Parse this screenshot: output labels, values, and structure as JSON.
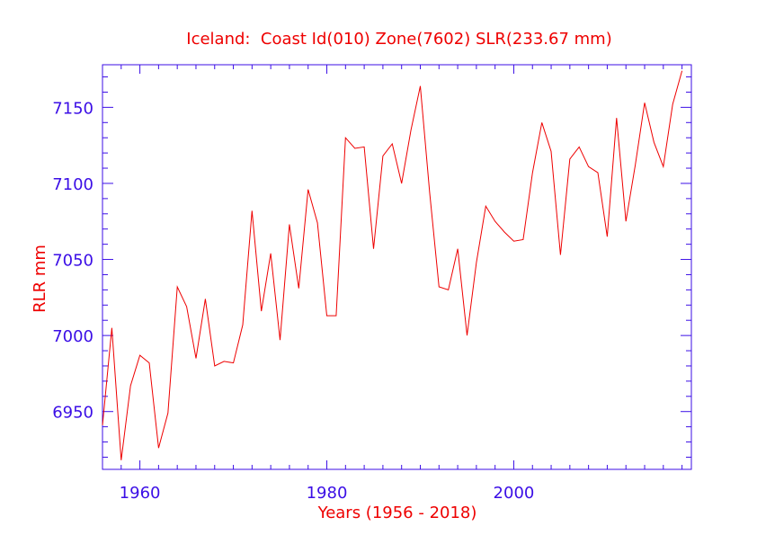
{
  "colors": {
    "axis": "#3b0ee6",
    "text": "#ee0000",
    "line": "#ee0000",
    "background": "#ffffff"
  },
  "chart_data": {
    "type": "line",
    "title": "Iceland:  Coast Id(010) Zone(7602) SLR(233.67 mm)",
    "xlabel": "Years (1956 - 2018)",
    "ylabel": "RLR mm",
    "xlim": [
      1956,
      2019
    ],
    "ylim": [
      6912,
      7178
    ],
    "xticks": [
      1960,
      1980,
      2000
    ],
    "xtick_labels": [
      "1960",
      "1980",
      "2000"
    ],
    "yticks": [
      6950,
      7000,
      7050,
      7100,
      7150
    ],
    "ytick_labels": [
      "6950",
      "7000",
      "7050",
      "7100",
      "7150"
    ],
    "grid": false,
    "series": [
      {
        "x": [
          1956,
          1957,
          1958,
          1959,
          1960,
          1961,
          1962,
          1963,
          1964,
          1965,
          1966,
          1967,
          1968,
          1969,
          1970,
          1971,
          1972,
          1973,
          1974,
          1975,
          1976,
          1977,
          1978,
          1979,
          1980,
          1981,
          1982,
          1983,
          1984,
          1985,
          1986,
          1987,
          1988,
          1989,
          1990,
          1991,
          1992,
          1993,
          1994,
          1995,
          1996,
          1997,
          1998,
          1999,
          2000,
          2001,
          2002,
          2003,
          2004,
          2005,
          2006,
          2007,
          2008,
          2009,
          2010,
          2011,
          2012,
          2013,
          2014,
          2015,
          2016,
          2017,
          2018
        ],
        "values": [
          6941,
          7005,
          6918,
          6967,
          6987,
          6982,
          6926,
          6949,
          7032,
          7019,
          6985,
          7024,
          6980,
          6983,
          6982,
          7007,
          7082,
          7016,
          7054,
          6997,
          7073,
          7031,
          7096,
          7074,
          7013,
          7013,
          7130,
          7123,
          7124,
          7057,
          7118,
          7126,
          7100,
          7135,
          7164,
          7094,
          7032,
          7030,
          7057,
          7000,
          7048,
          7085,
          7075,
          7068,
          7062,
          7063,
          7107,
          7140,
          7121,
          7053,
          7116,
          7124,
          7111,
          7107,
          7065,
          7143,
          7075,
          7112,
          7153,
          7127,
          7111,
          7152,
          7174
        ]
      }
    ]
  }
}
